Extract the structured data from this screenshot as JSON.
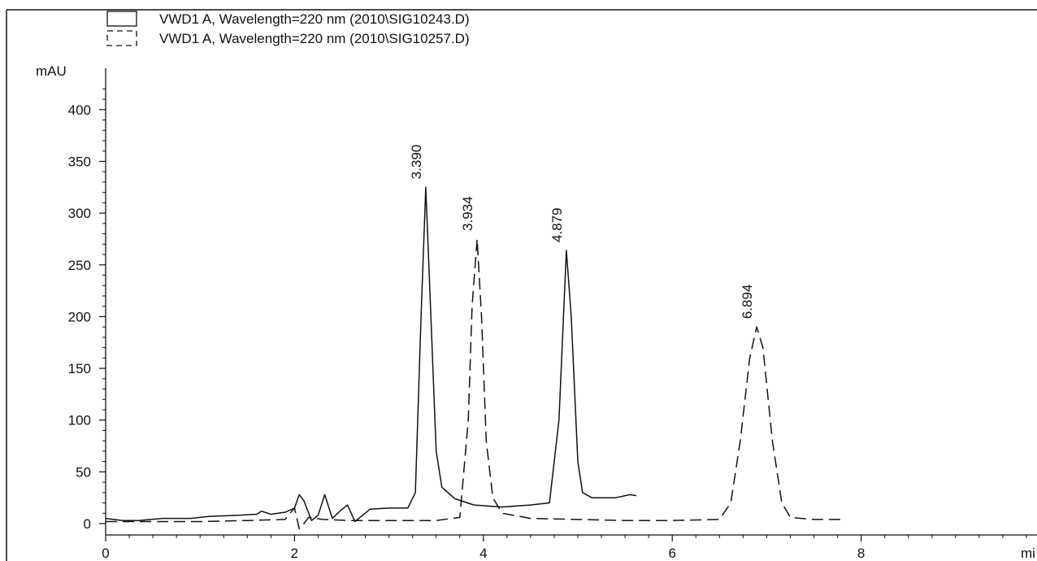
{
  "chart_data": {
    "type": "line",
    "ylabel": "mAU",
    "xlabel": "mi",
    "xlim": [
      0,
      9.75
    ],
    "ylim": [
      -8,
      430
    ],
    "x_ticks": [
      0,
      2,
      4,
      6,
      8
    ],
    "y_ticks": [
      0,
      50,
      100,
      150,
      200,
      250,
      300,
      350,
      400
    ],
    "legend_position": "top-left",
    "grid": false,
    "series": [
      {
        "name": "VWD1 A, Wavelength=220 nm (2010\\SIG10243.D)",
        "style": "solid",
        "color": "#111111",
        "x": [
          0.0,
          0.18,
          0.35,
          0.6,
          0.9,
          1.1,
          1.4,
          1.6,
          1.65,
          1.75,
          1.9,
          2.0,
          2.05,
          2.1,
          2.18,
          2.25,
          2.32,
          2.4,
          2.48,
          2.56,
          2.64,
          2.72,
          2.8,
          3.0,
          3.2,
          3.28,
          3.34,
          3.39,
          3.44,
          3.5,
          3.56,
          3.7,
          3.9,
          4.2,
          4.5,
          4.7,
          4.8,
          4.879,
          4.93,
          5.0,
          5.05,
          5.15,
          5.4,
          5.55,
          5.62
        ],
        "y": [
          5.0,
          3.0,
          3.0,
          5.0,
          5.0,
          7.0,
          8.0,
          9.0,
          12.0,
          9.0,
          11.0,
          15.0,
          28.0,
          22.0,
          3.0,
          8.0,
          28.0,
          5.0,
          12.0,
          18.0,
          2.0,
          8.0,
          14.0,
          15.0,
          15.0,
          30.0,
          200.0,
          325.0,
          210.0,
          70.0,
          35.0,
          24.0,
          18.0,
          16.0,
          18.0,
          20.0,
          100.0,
          264.0,
          200.0,
          60.0,
          30.0,
          25.0,
          25.0,
          28.0,
          27.0
        ]
      },
      {
        "name": "VWD1 A, Wavelength=220 nm (2010\\SIG10257.D)",
        "style": "dashed",
        "color": "#111111",
        "x": [
          0.0,
          0.5,
          1.0,
          1.5,
          1.9,
          2.0,
          2.05,
          2.1,
          2.15,
          2.3,
          2.6,
          3.0,
          3.5,
          3.75,
          3.84,
          3.88,
          3.934,
          3.98,
          4.03,
          4.1,
          4.2,
          4.5,
          5.0,
          5.5,
          6.0,
          6.5,
          6.62,
          6.72,
          6.82,
          6.894,
          6.96,
          7.06,
          7.16,
          7.25,
          7.5,
          7.8
        ],
        "y": [
          2.0,
          2.0,
          2.0,
          3.0,
          4.0,
          15.0,
          -5.0,
          0.0,
          6.0,
          4.0,
          3.0,
          3.0,
          3.0,
          6.0,
          100.0,
          210.0,
          275.0,
          200.0,
          80.0,
          25.0,
          10.0,
          5.0,
          4.0,
          3.0,
          3.0,
          4.0,
          20.0,
          80.0,
          160.0,
          190.0,
          170.0,
          80.0,
          20.0,
          6.0,
          4.0,
          4.0
        ]
      }
    ],
    "peak_labels": [
      {
        "text": "3.390",
        "x": 3.39,
        "y": 325
      },
      {
        "text": "3.934",
        "x": 3.934,
        "y": 275
      },
      {
        "text": "4.879",
        "x": 4.879,
        "y": 264
      },
      {
        "text": "6.894",
        "x": 6.894,
        "y": 190
      }
    ]
  }
}
